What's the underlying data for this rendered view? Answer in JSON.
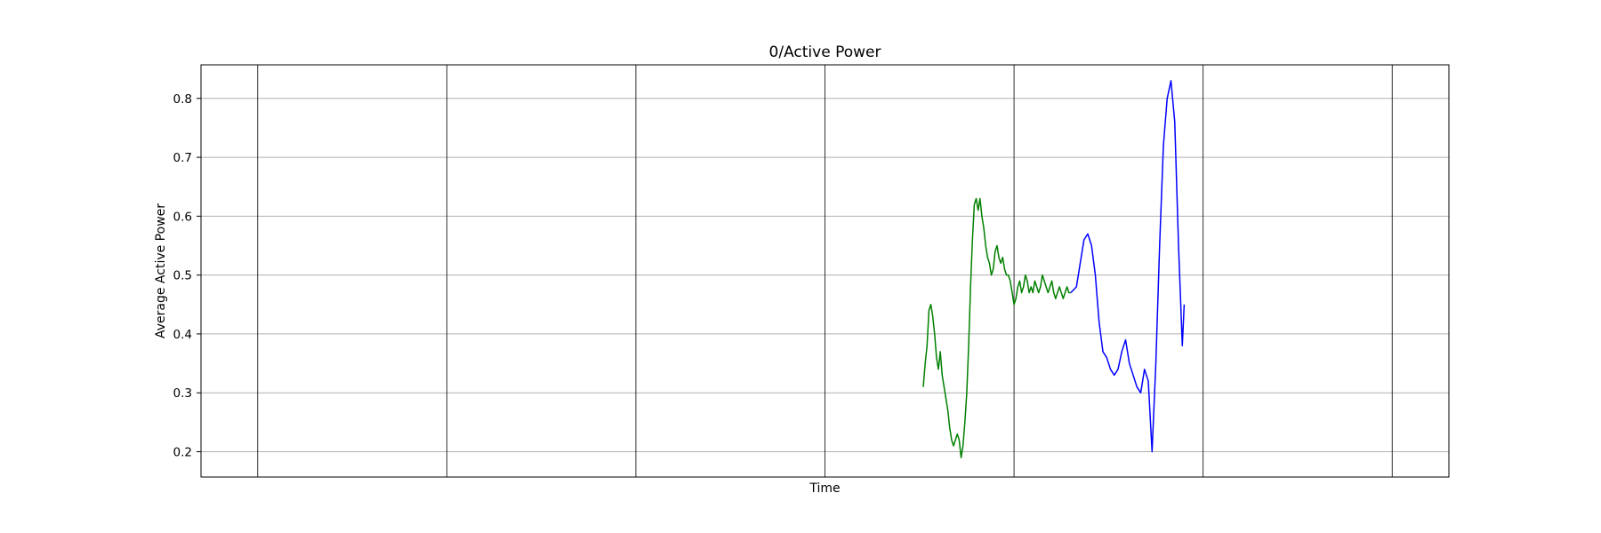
{
  "chart_data": {
    "type": "line",
    "title": "0/Active Power",
    "xlabel": "Time",
    "ylabel": "Average Active Power",
    "ylim": [
      0.157,
      0.857
    ],
    "yticks": [
      0.2,
      0.3,
      0.4,
      0.5,
      0.6,
      0.7,
      0.8
    ],
    "ytick_labels": [
      "0.2",
      "0.3",
      "0.4",
      "0.5",
      "0.6",
      "0.7",
      "0.8"
    ],
    "xlim": [
      -0.3,
      6.3
    ],
    "xgrid": [
      0,
      1,
      2,
      3,
      4,
      5,
      6
    ],
    "grid": true,
    "colors": {
      "series_green": "#008000",
      "series_blue": "#0000ff",
      "grid_y": "#b0b0b0",
      "grid_x": "#000000"
    },
    "series": [
      {
        "name": "green",
        "color": "#008000",
        "x": [
          3.52,
          3.53,
          3.54,
          3.55,
          3.56,
          3.57,
          3.58,
          3.59,
          3.6,
          3.61,
          3.62,
          3.63,
          3.64,
          3.65,
          3.66,
          3.67,
          3.68,
          3.69,
          3.7,
          3.71,
          3.72,
          3.73,
          3.74,
          3.75,
          3.76,
          3.77,
          3.78,
          3.79,
          3.8,
          3.81,
          3.82,
          3.83,
          3.84,
          3.85,
          3.86,
          3.87,
          3.88,
          3.89,
          3.9,
          3.91,
          3.92,
          3.93,
          3.94,
          3.95,
          3.96,
          3.97,
          3.98,
          3.99,
          4.0,
          4.01,
          4.02,
          4.03,
          4.04,
          4.05,
          4.06,
          4.07,
          4.08,
          4.09,
          4.1,
          4.11,
          4.12,
          4.13,
          4.14,
          4.15,
          4.16,
          4.17,
          4.18,
          4.19,
          4.2,
          4.21,
          4.22,
          4.23,
          4.24,
          4.25,
          4.26,
          4.27,
          4.28,
          4.29,
          4.3
        ],
        "y": [
          0.31,
          0.35,
          0.38,
          0.44,
          0.45,
          0.43,
          0.4,
          0.36,
          0.34,
          0.37,
          0.33,
          0.31,
          0.29,
          0.27,
          0.24,
          0.22,
          0.21,
          0.22,
          0.23,
          0.22,
          0.19,
          0.21,
          0.25,
          0.3,
          0.38,
          0.48,
          0.56,
          0.62,
          0.63,
          0.61,
          0.63,
          0.6,
          0.58,
          0.55,
          0.53,
          0.52,
          0.5,
          0.51,
          0.54,
          0.55,
          0.53,
          0.52,
          0.53,
          0.51,
          0.5,
          0.5,
          0.49,
          0.47,
          0.45,
          0.46,
          0.48,
          0.49,
          0.47,
          0.48,
          0.5,
          0.49,
          0.47,
          0.48,
          0.47,
          0.49,
          0.48,
          0.47,
          0.48,
          0.5,
          0.49,
          0.48,
          0.47,
          0.48,
          0.49,
          0.47,
          0.46,
          0.47,
          0.48,
          0.47,
          0.46,
          0.47,
          0.48,
          0.47,
          0.47
        ]
      },
      {
        "name": "blue",
        "color": "#0000ff",
        "x": [
          4.3,
          4.33,
          4.35,
          4.37,
          4.39,
          4.41,
          4.43,
          4.45,
          4.47,
          4.49,
          4.51,
          4.53,
          4.55,
          4.57,
          4.59,
          4.61,
          4.63,
          4.65,
          4.67,
          4.69,
          4.71,
          4.73,
          4.75,
          4.77,
          4.79,
          4.81,
          4.83,
          4.85,
          4.87,
          4.89,
          4.9
        ],
        "y": [
          0.47,
          0.48,
          0.52,
          0.56,
          0.57,
          0.55,
          0.5,
          0.42,
          0.37,
          0.36,
          0.34,
          0.33,
          0.34,
          0.37,
          0.39,
          0.35,
          0.33,
          0.31,
          0.3,
          0.34,
          0.32,
          0.2,
          0.35,
          0.55,
          0.72,
          0.8,
          0.83,
          0.76,
          0.55,
          0.38,
          0.45
        ]
      }
    ]
  }
}
